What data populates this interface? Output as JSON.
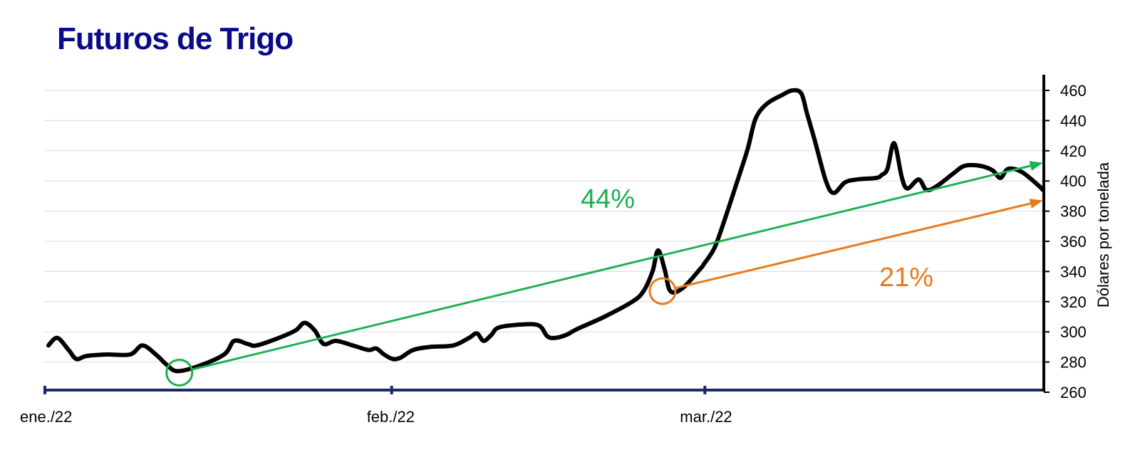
{
  "title": "Futuros de  Trigo",
  "chart_data": {
    "type": "line",
    "title": "Futuros de  Trigo",
    "ylabel": "Dólares por tonelada",
    "xlabel": "",
    "ylim": [
      260,
      460
    ],
    "yticks": [
      260,
      280,
      300,
      320,
      340,
      360,
      380,
      400,
      420,
      440,
      460
    ],
    "xticks": [
      {
        "label": "ene./22",
        "x": 0
      },
      {
        "label": "feb./22",
        "x": 31
      },
      {
        "label": "mar./22",
        "x": 59
      }
    ],
    "xlim": [
      0,
      85
    ],
    "y_axis_side": "right",
    "grid": true,
    "series": [
      {
        "color": "#000000",
        "points": [
          [
            0.0,
            291
          ],
          [
            0.8,
            296
          ],
          [
            1.8,
            288
          ],
          [
            2.5,
            282
          ],
          [
            3.4,
            284
          ],
          [
            5.2,
            285
          ],
          [
            7.3,
            285
          ],
          [
            8.4,
            291
          ],
          [
            9.6,
            285
          ],
          [
            10.6,
            278
          ],
          [
            11.5,
            274
          ],
          [
            13.3,
            277
          ],
          [
            15.7,
            285
          ],
          [
            16.6,
            294
          ],
          [
            17.8,
            292
          ],
          [
            18.6,
            291
          ],
          [
            20.6,
            296
          ],
          [
            22.1,
            301
          ],
          [
            22.9,
            306
          ],
          [
            23.8,
            301
          ],
          [
            24.6,
            292
          ],
          [
            25.7,
            294
          ],
          [
            27.2,
            291
          ],
          [
            28.6,
            288
          ],
          [
            29.3,
            289
          ],
          [
            30.0,
            285
          ],
          [
            30.8,
            282
          ],
          [
            31.5,
            283
          ],
          [
            32.6,
            288
          ],
          [
            34.1,
            290
          ],
          [
            36.2,
            291
          ],
          [
            37.6,
            296
          ],
          [
            38.3,
            299
          ],
          [
            38.9,
            294
          ],
          [
            39.6,
            298
          ],
          [
            40.3,
            303
          ],
          [
            42.6,
            305
          ],
          [
            43.9,
            304
          ],
          [
            44.6,
            297
          ],
          [
            45.3,
            296
          ],
          [
            46.3,
            298
          ],
          [
            47.3,
            302
          ],
          [
            49.7,
            310
          ],
          [
            52.2,
            320
          ],
          [
            53.2,
            327
          ],
          [
            54.0,
            340
          ],
          [
            54.5,
            354
          ],
          [
            55.1,
            341
          ],
          [
            55.6,
            327
          ],
          [
            56.7,
            329
          ],
          [
            58.3,
            342
          ],
          [
            58.6,
            345
          ],
          [
            59.5,
            355
          ],
          [
            60.3,
            371
          ],
          [
            61.5,
            398
          ],
          [
            62.5,
            421
          ],
          [
            63.2,
            441
          ],
          [
            64.2,
            451
          ],
          [
            65.6,
            457
          ],
          [
            66.5,
            460
          ],
          [
            67.3,
            458
          ],
          [
            67.8,
            445
          ],
          [
            68.5,
            427
          ],
          [
            69.5,
            400
          ],
          [
            70.2,
            392
          ],
          [
            71.2,
            399
          ],
          [
            72.3,
            401
          ],
          [
            74.0,
            402
          ],
          [
            74.5,
            404
          ],
          [
            75.0,
            408
          ],
          [
            75.6,
            425
          ],
          [
            76.3,
            402
          ],
          [
            76.8,
            395
          ],
          [
            77.8,
            401
          ],
          [
            78.5,
            394
          ],
          [
            79.5,
            397
          ],
          [
            80.9,
            405
          ],
          [
            81.9,
            410
          ],
          [
            83.3,
            410
          ],
          [
            84.4,
            407
          ],
          [
            85.1,
            402
          ],
          [
            85.8,
            408
          ],
          [
            87.0,
            406
          ],
          [
            88.5,
            397
          ],
          [
            88.9,
            394
          ]
        ]
      }
    ],
    "annotations": [
      {
        "label": "44%",
        "color": "#1db050",
        "from": [
          11.7,
          273
        ],
        "to": [
          88.9,
          412
        ]
      },
      {
        "label": "21%",
        "color": "#e87a1e",
        "from": [
          54.9,
          327
        ],
        "to": [
          88.9,
          387
        ]
      }
    ]
  }
}
